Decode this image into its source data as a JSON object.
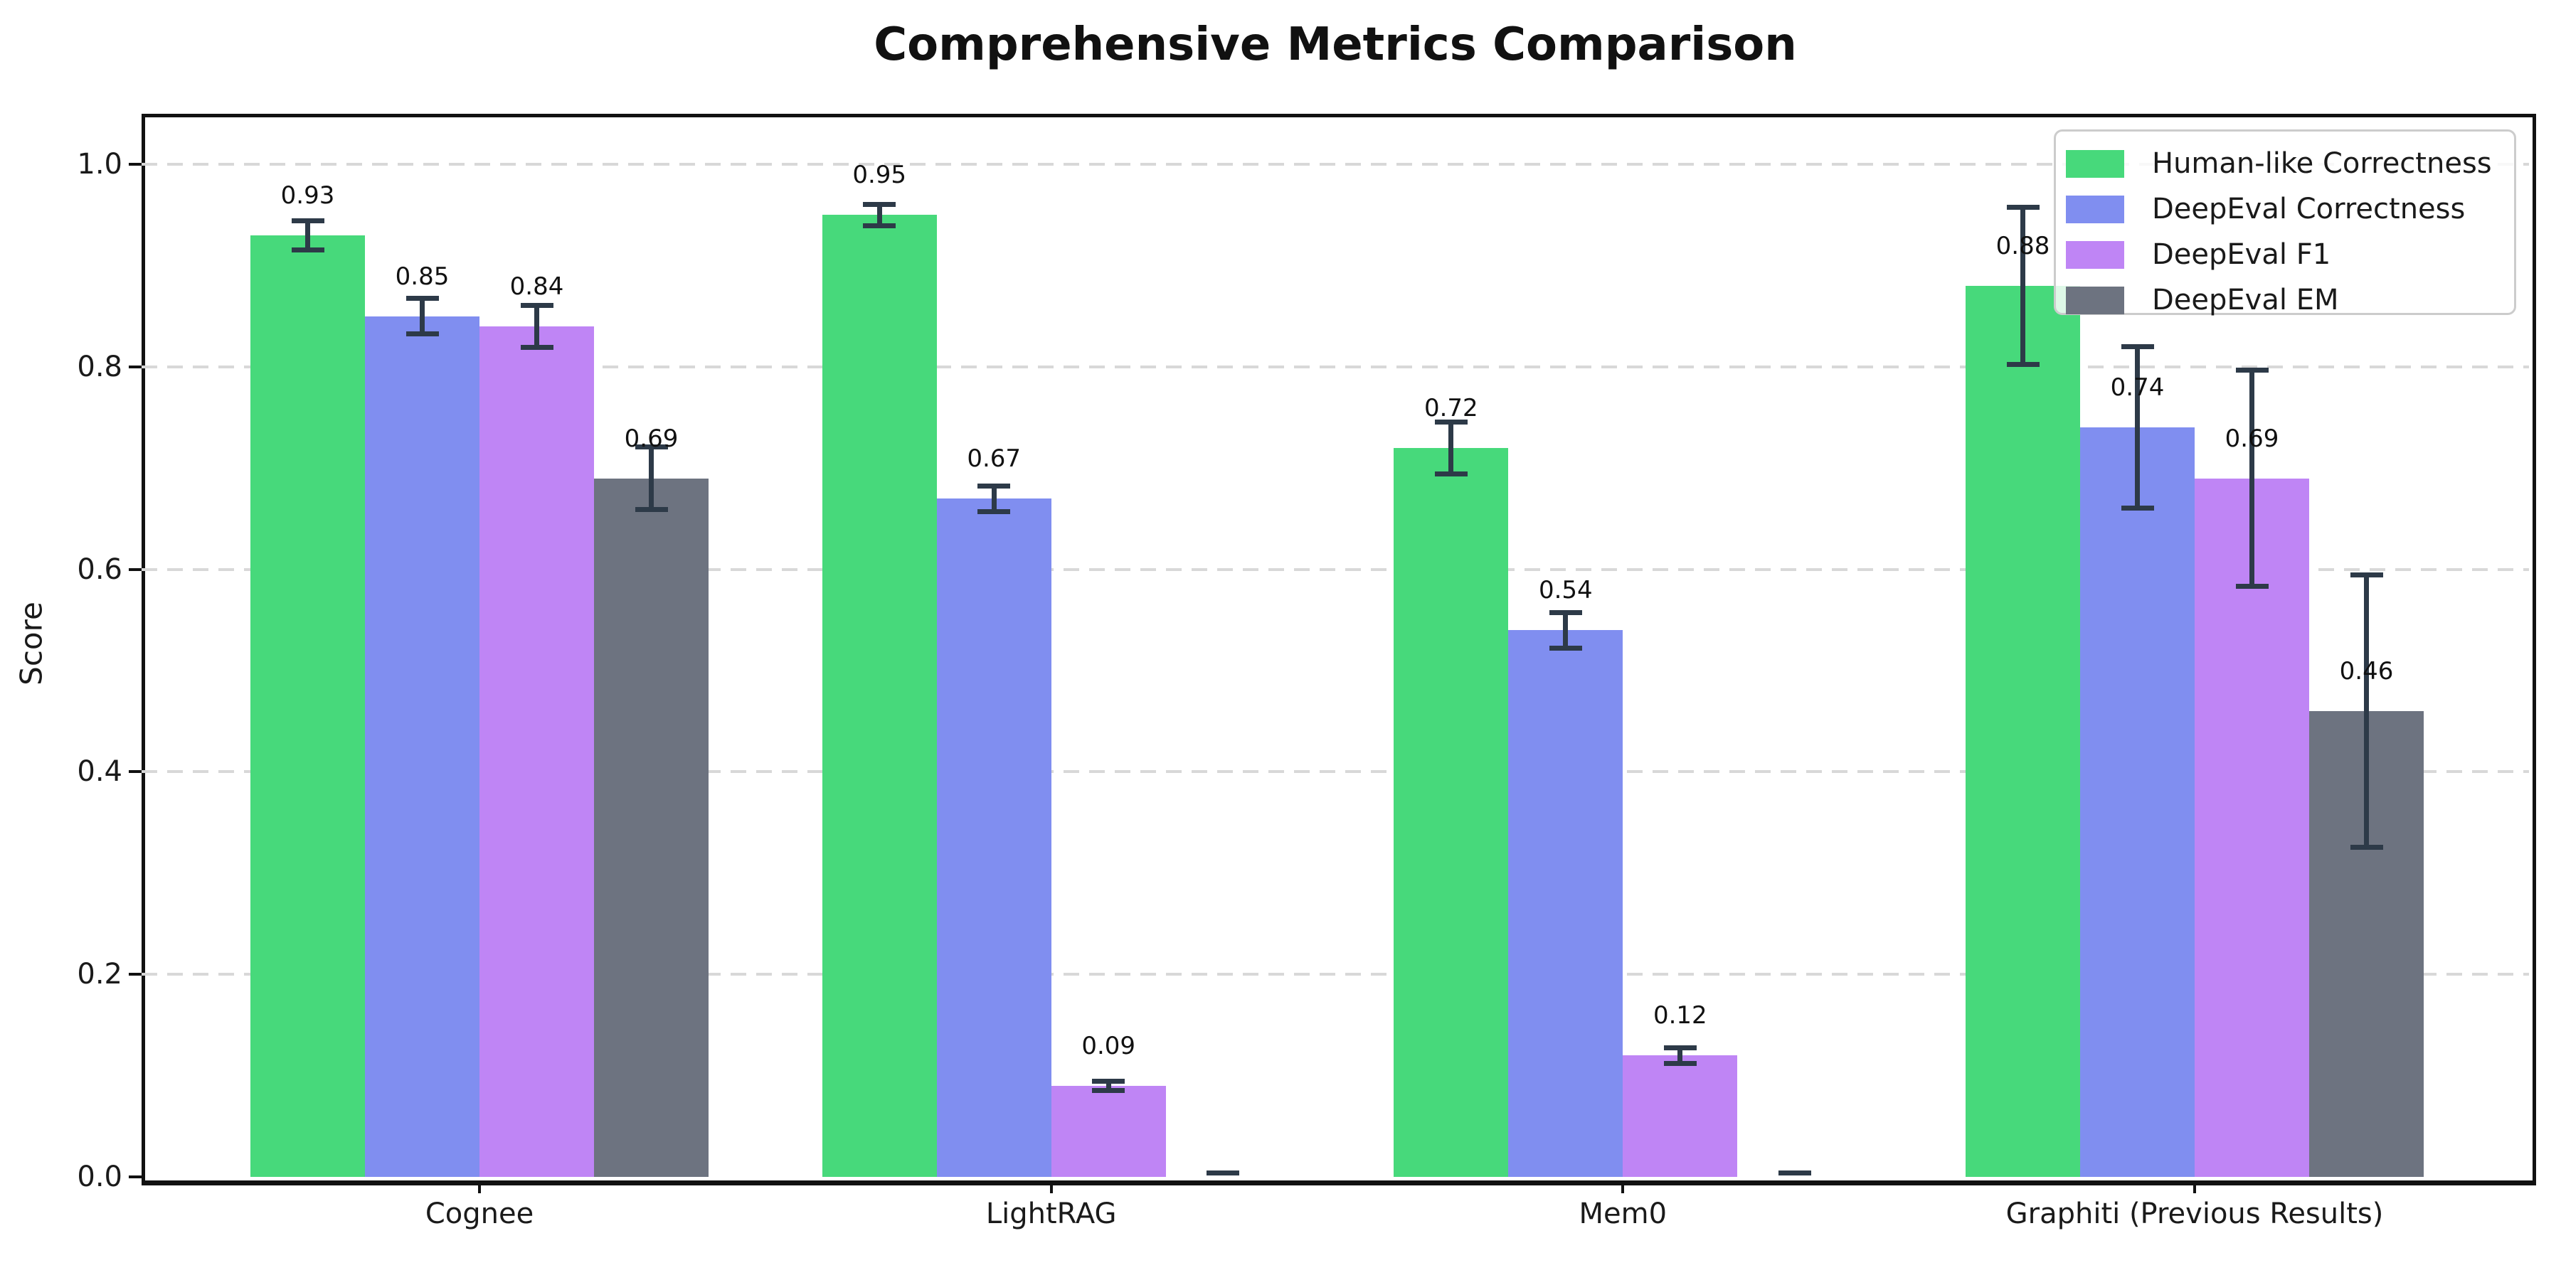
{
  "title": "Comprehensive Metrics Comparison",
  "y_axis": {
    "label": "Score",
    "tick_labels": [
      "0.0",
      "0.2",
      "0.4",
      "0.6",
      "0.8",
      "1.0"
    ]
  },
  "chart_data": {
    "type": "bar",
    "title": "Comprehensive Metrics Comparison",
    "xlabel": "",
    "ylabel": "Score",
    "ylim": [
      0,
      1.05
    ],
    "yticks": [
      0.0,
      0.2,
      0.4,
      0.6,
      0.8,
      1.0
    ],
    "grid": "horizontal dashed gridlines on",
    "legend_position": "upper right",
    "error_bar_color": "#2D3A48",
    "categories": [
      "Cognee",
      "LightRAG",
      "Mem0",
      "Graphiti (Previous Results)"
    ],
    "series": [
      {
        "name": "Human-like Correctness",
        "color": "#47D97B",
        "values": [
          0.93,
          0.95,
          0.72,
          0.88
        ],
        "errors": [
          0.015,
          0.011,
          0.026,
          0.078
        ],
        "labels": [
          "0.93",
          "0.95",
          "0.72",
          "0.88"
        ]
      },
      {
        "name": "DeepEval Correctness",
        "color": "#808EF0",
        "values": [
          0.85,
          0.67,
          0.54,
          0.74
        ],
        "errors": [
          0.018,
          0.013,
          0.018,
          0.08
        ],
        "labels": [
          "0.85",
          "0.67",
          "0.54",
          "0.74"
        ]
      },
      {
        "name": "DeepEval F1",
        "color": "#BF85F5",
        "values": [
          0.84,
          0.09,
          0.12,
          0.69
        ],
        "errors": [
          0.021,
          0.005,
          0.008,
          0.107
        ],
        "labels": [
          "0.84",
          "0.09",
          "0.12",
          "0.69"
        ]
      },
      {
        "name": "DeepEval EM",
        "color": "#6D7380",
        "values": [
          0.69,
          0.0,
          0.0,
          0.46
        ],
        "errors": [
          0.031,
          0.004,
          0.004,
          0.135
        ],
        "labels": [
          "0.69",
          "",
          "",
          "0.46"
        ]
      }
    ]
  }
}
